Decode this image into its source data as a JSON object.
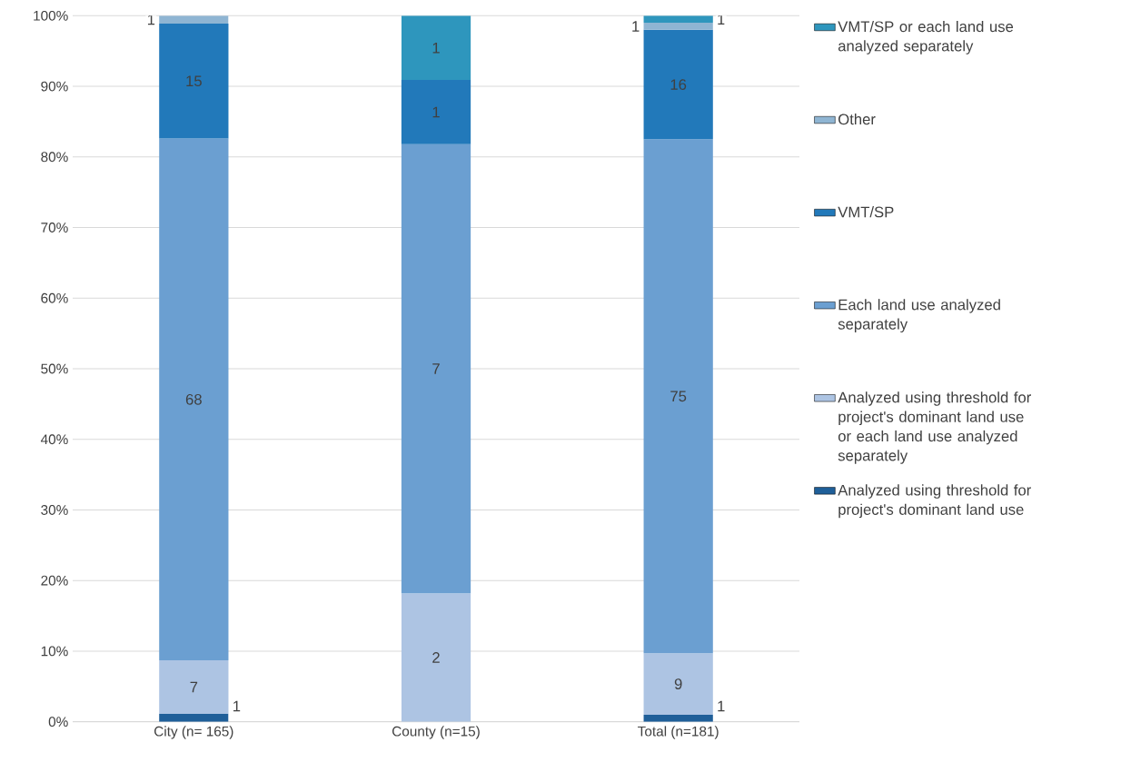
{
  "chart_data": {
    "type": "bar",
    "stacked": true,
    "categories": [
      "City (n= 165)",
      "County (n=15)",
      "Total (n=181)"
    ],
    "series": [
      {
        "name": "Analyzed using threshold for project's dominant land use",
        "color": "#1f5f99",
        "values": [
          1.1,
          null,
          1.0
        ]
      },
      {
        "name": "Analyzed using threshold for project's dominant land use or each land use analyzed separately",
        "color": "#adc4e3",
        "values": [
          7.6,
          18.2,
          8.7
        ]
      },
      {
        "name": "Each land use analyzed separately",
        "color": "#6b9fd1",
        "values": [
          73.9,
          63.6,
          72.8
        ]
      },
      {
        "name": "VMT/SP",
        "color": "#2279ba",
        "values": [
          16.3,
          9.1,
          15.5
        ]
      },
      {
        "name": "Other",
        "color": "#8fb5d3",
        "values": [
          1.1,
          null,
          1.0
        ]
      },
      {
        "name": "VMT/SP or each land use analyzed separately",
        "color": "#2e96bd",
        "values": [
          null,
          9.1,
          1.0
        ]
      }
    ],
    "annotations": [
      "1",
      "7",
      "68",
      "15",
      "1",
      "2",
      "7",
      "1",
      "1",
      "1",
      "9",
      "75",
      "16",
      "1",
      "1"
    ],
    "ylim": [
      0,
      100
    ],
    "yticks": [
      {
        "value": 0,
        "label": "0%"
      },
      {
        "value": 10,
        "label": "10%"
      },
      {
        "value": 20,
        "label": "20%"
      },
      {
        "value": 30,
        "label": "30%"
      },
      {
        "value": 40,
        "label": "40%"
      },
      {
        "value": 50,
        "label": "50%"
      },
      {
        "value": 60,
        "label": "60%"
      },
      {
        "value": 70,
        "label": "70%"
      },
      {
        "value": 80,
        "label": "80%"
      },
      {
        "value": 90,
        "label": "90%"
      },
      {
        "value": 100,
        "label": "100%"
      }
    ],
    "grid": "y",
    "legend": "right"
  }
}
